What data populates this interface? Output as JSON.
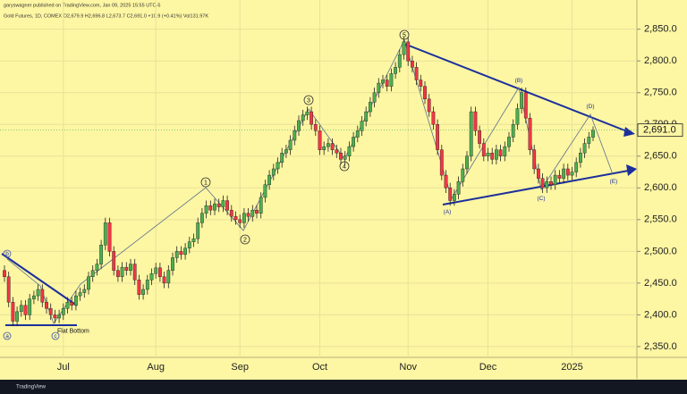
{
  "chart_data": {
    "type": "candlestick",
    "subtitle": "garyswagner published on TradingView.com, Jan 09, 2025 15:55 UTC-5",
    "title": "Gold Futures, 1D, COMEX  O2,679.9  H2,696.8  L2,673.7  C2,691.0  +10.9 (+0.41%)  Vol131.97K",
    "categories": [
      null,
      null,
      null,
      null,
      null,
      null,
      null,
      null,
      null,
      null,
      null,
      null,
      null,
      null,
      "Jul",
      null,
      null,
      null,
      null,
      null,
      null,
      null,
      null,
      null,
      null,
      null,
      null,
      null,
      null,
      null,
      null,
      null,
      null,
      null,
      null,
      null,
      "Aug",
      null,
      null,
      null,
      null,
      null,
      null,
      null,
      null,
      null,
      null,
      null,
      null,
      null,
      null,
      null,
      null,
      null,
      null,
      null,
      "Sep",
      null,
      null,
      null,
      null,
      null,
      null,
      null,
      null,
      null,
      null,
      null,
      null,
      null,
      null,
      null,
      null,
      null,
      null,
      "Oct",
      null,
      null,
      null,
      null,
      null,
      null,
      null,
      null,
      null,
      null,
      null,
      null,
      null,
      null,
      null,
      null,
      null,
      null,
      null,
      null,
      "Nov",
      null,
      null,
      null,
      null,
      null,
      null,
      null,
      null,
      null,
      null,
      null,
      null,
      null,
      null,
      null,
      null,
      null,
      null,
      "Dec",
      null,
      null,
      null,
      null,
      null,
      null,
      null,
      null,
      null,
      null,
      null,
      null,
      null,
      null,
      null,
      null,
      null,
      null,
      null,
      "2025",
      null,
      null,
      null,
      null,
      null
    ],
    "open": [
      2470,
      2460,
      2420,
      2390,
      2405,
      2415,
      2400,
      2425,
      2430,
      2440,
      2420,
      2410,
      2400,
      2395,
      2400,
      2410,
      2420,
      2415,
      2430,
      2435,
      2440,
      2460,
      2470,
      2480,
      2510,
      2545,
      2500,
      2470,
      2460,
      2475,
      2470,
      2480,
      2455,
      2432,
      2440,
      2455,
      2465,
      2474,
      2460,
      2450,
      2470,
      2490,
      2500,
      2495,
      2505,
      2515,
      2520,
      2545,
      2560,
      2572,
      2565,
      2575,
      2570,
      2580,
      2565,
      2555,
      2550,
      2545,
      2560,
      2555,
      2565,
      2560,
      2585,
      2605,
      2620,
      2630,
      2640,
      2655,
      2660,
      2675,
      2690,
      2706,
      2715,
      2720,
      2700,
      2690,
      2660,
      2665,
      2670,
      2660,
      2655,
      2645,
      2650,
      2665,
      2680,
      2690,
      2705,
      2720,
      2735,
      2750,
      2765,
      2770,
      2760,
      2780,
      2790,
      2810,
      2830,
      2800,
      2790,
      2770,
      2760,
      2740,
      2720,
      2700,
      2660,
      2620,
      2600,
      2580,
      2590,
      2610,
      2630,
      2650,
      2720,
      2690,
      2670,
      2650,
      2655,
      2645,
      2660,
      2650,
      2665,
      2680,
      2700,
      2725,
      2750,
      2710,
      2660,
      2630,
      2615,
      2600,
      2610,
      2605,
      2620,
      2615,
      2630,
      2620,
      2625,
      2640,
      2655,
      2670,
      2679.9
    ],
    "high": [
      2478,
      2468,
      2428,
      2413,
      2423,
      2423,
      2433,
      2438,
      2448,
      2448,
      2428,
      2418,
      2408,
      2408,
      2418,
      2428,
      2428,
      2438,
      2443,
      2448,
      2468,
      2478,
      2488,
      2518,
      2553,
      2553,
      2508,
      2478,
      2483,
      2483,
      2488,
      2488,
      2463,
      2448,
      2463,
      2473,
      2482,
      2482,
      2468,
      2478,
      2498,
      2508,
      2508,
      2513,
      2523,
      2528,
      2553,
      2568,
      2580,
      2580,
      2583,
      2583,
      2588,
      2588,
      2573,
      2563,
      2558,
      2568,
      2568,
      2573,
      2573,
      2593,
      2613,
      2628,
      2638,
      2648,
      2663,
      2668,
      2683,
      2698,
      2714,
      2723,
      2728,
      2728,
      2708,
      2698,
      2673,
      2678,
      2678,
      2668,
      2663,
      2658,
      2673,
      2688,
      2698,
      2713,
      2728,
      2743,
      2758,
      2773,
      2778,
      2778,
      2788,
      2798,
      2818,
      2838,
      2838,
      2808,
      2798,
      2778,
      2768,
      2748,
      2728,
      2708,
      2668,
      2628,
      2608,
      2598,
      2618,
      2638,
      2658,
      2728,
      2728,
      2698,
      2678,
      2663,
      2663,
      2668,
      2668,
      2673,
      2688,
      2708,
      2733,
      2758,
      2758,
      2718,
      2668,
      2638,
      2623,
      2618,
      2618,
      2628,
      2628,
      2638,
      2638,
      2633,
      2648,
      2663,
      2678,
      2688,
      2696.8
    ],
    "low": [
      2452,
      2412,
      2382,
      2382,
      2397,
      2392,
      2392,
      2417,
      2422,
      2412,
      2402,
      2392,
      2387,
      2387,
      2392,
      2402,
      2407,
      2407,
      2422,
      2427,
      2432,
      2452,
      2462,
      2472,
      2502,
      2492,
      2462,
      2452,
      2452,
      2462,
      2462,
      2447,
      2424,
      2424,
      2432,
      2447,
      2457,
      2452,
      2442,
      2442,
      2462,
      2482,
      2487,
      2487,
      2497,
      2507,
      2512,
      2537,
      2552,
      2557,
      2557,
      2562,
      2562,
      2557,
      2547,
      2542,
      2537,
      2537,
      2547,
      2547,
      2552,
      2552,
      2577,
      2597,
      2612,
      2622,
      2632,
      2647,
      2652,
      2667,
      2682,
      2698,
      2707,
      2692,
      2682,
      2652,
      2652,
      2657,
      2652,
      2647,
      2637,
      2637,
      2642,
      2657,
      2672,
      2682,
      2697,
      2712,
      2727,
      2742,
      2757,
      2752,
      2752,
      2772,
      2782,
      2802,
      2792,
      2782,
      2762,
      2752,
      2732,
      2712,
      2692,
      2652,
      2612,
      2592,
      2572,
      2572,
      2582,
      2602,
      2622,
      2642,
      2682,
      2662,
      2642,
      2642,
      2637,
      2637,
      2642,
      2642,
      2657,
      2672,
      2692,
      2717,
      2702,
      2652,
      2622,
      2607,
      2592,
      2592,
      2597,
      2597,
      2607,
      2607,
      2612,
      2612,
      2617,
      2632,
      2647,
      2662,
      2673.7
    ],
    "close": [
      2460,
      2420,
      2390,
      2405,
      2415,
      2400,
      2425,
      2430,
      2440,
      2420,
      2410,
      2400,
      2395,
      2400,
      2410,
      2420,
      2415,
      2430,
      2435,
      2440,
      2460,
      2470,
      2480,
      2510,
      2545,
      2500,
      2470,
      2460,
      2475,
      2470,
      2480,
      2455,
      2432,
      2440,
      2455,
      2465,
      2474,
      2460,
      2450,
      2470,
      2490,
      2500,
      2495,
      2505,
      2515,
      2520,
      2545,
      2560,
      2572,
      2565,
      2575,
      2570,
      2580,
      2565,
      2555,
      2550,
      2545,
      2560,
      2555,
      2565,
      2560,
      2585,
      2605,
      2620,
      2630,
      2640,
      2655,
      2660,
      2675,
      2690,
      2706,
      2715,
      2720,
      2700,
      2690,
      2660,
      2665,
      2670,
      2660,
      2655,
      2645,
      2650,
      2665,
      2680,
      2690,
      2705,
      2720,
      2735,
      2750,
      2765,
      2770,
      2760,
      2780,
      2790,
      2810,
      2830,
      2800,
      2790,
      2770,
      2760,
      2740,
      2720,
      2700,
      2660,
      2620,
      2600,
      2580,
      2590,
      2610,
      2630,
      2650,
      2720,
      2690,
      2670,
      2650,
      2655,
      2645,
      2660,
      2650,
      2665,
      2680,
      2700,
      2725,
      2750,
      2710,
      2660,
      2630,
      2615,
      2600,
      2610,
      2605,
      2620,
      2615,
      2630,
      2620,
      2625,
      2640,
      2655,
      2670,
      2680,
      2691.0
    ],
    "up_color": "#4caf50",
    "down_color": "#f23645",
    "ylim": [
      2333,
      2896
    ],
    "yticks": [
      {
        "value": 2350,
        "label": "2,350.0"
      },
      {
        "value": 2400,
        "label": "2,400.0"
      },
      {
        "value": 2450,
        "label": "2,450.0"
      },
      {
        "value": 2500,
        "label": "2,500.0"
      },
      {
        "value": 2550,
        "label": "2,550.0"
      },
      {
        "value": 2600,
        "label": "2,600.0"
      },
      {
        "value": 2650,
        "label": "2,650.0"
      },
      {
        "value": 2700,
        "label": "2,700.0"
      },
      {
        "value": 2750,
        "label": "2,750.0"
      },
      {
        "value": 2800,
        "label": "2,800.0"
      },
      {
        "value": 2850,
        "label": "2,850.0"
      }
    ],
    "grid": true,
    "last_label": "2,691.0",
    "annotations": [
      "1",
      "2",
      "3",
      "4",
      "5",
      "(A)",
      "(B)",
      "(C)",
      "(D)",
      "(E)",
      "a",
      "b",
      "c",
      "Flat Bottom"
    ],
    "watermark": "TradingView"
  }
}
